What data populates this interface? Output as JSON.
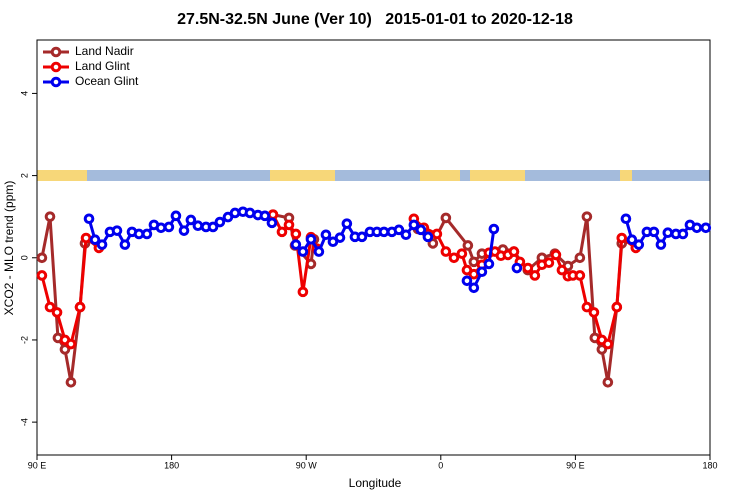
{
  "chart_data": {
    "type": "line",
    "title": "27.5N-32.5N June (Ver 10)   2015-01-01 to 2020-12-18",
    "x_label": "Longitude",
    "y_label": "XCO2 - MLO trend (ppm)",
    "xlim": [
      90,
      540
    ],
    "ylim": [
      -4.8,
      5.3
    ],
    "xticks": [
      {
        "value": 90,
        "label": "90 E"
      },
      180,
      {
        "value": 270,
        "label": "90 W"
      },
      {
        "value": 360,
        "label": "0"
      },
      {
        "value": 450,
        "label": "90 E"
      },
      {
        "value": 540,
        "label": "180"
      }
    ],
    "yticks": [
      -4,
      -2,
      0,
      2,
      4
    ],
    "legend": "top-left",
    "series": [
      {
        "name": "Land Nadir",
        "color": "#a52a2a",
        "x": [
          93.3,
          98.7,
          104,
          108.7,
          112.7,
          118.8,
          122.1,
          200,
          247.8,
          258.5,
          262.5,
          273.2,
          275.2,
          310,
          344.7,
          354.7,
          363.4,
          378.1,
          382.1,
          387.5,
          401.5,
          405.5,
          408.9,
          418.2,
          427.6,
          436.3,
          445,
          453,
          457.7,
          463,
          467.7,
          471.7,
          477.7,
          481
        ],
        "values": [
          0,
          1.0,
          -1.95,
          -2.23,
          -3.03,
          -1.2,
          0.35,
          null,
          1.05,
          0.97,
          0.3,
          -0.15,
          0.45,
          null,
          0.7,
          0.35,
          0.97,
          0.3,
          -0.1,
          0.1,
          0.2,
          0.1,
          0.15,
          -0.3,
          0,
          0.1,
          -0.2,
          0,
          1.0,
          -1.95,
          -2.23,
          -3.03,
          -1.2,
          0.35
        ]
      },
      {
        "name": "Land Glint",
        "color": "#ee0000",
        "x": [
          93.3,
          98.7,
          103.4,
          108.7,
          112.7,
          118.8,
          122.8,
          131.4,
          200,
          247.8,
          253.8,
          258.5,
          263.1,
          267.8,
          273.2,
          277.2,
          310,
          342,
          348.7,
          357.4,
          363.4,
          368.8,
          374.1,
          377.5,
          382.1,
          387.5,
          392.2,
          396.2,
          400.2,
          404.9,
          408.9,
          412.9,
          418.2,
          422.9,
          427.6,
          432.3,
          437,
          441,
          445,
          448.3,
          453,
          457.7,
          462.4,
          467.7,
          471.7,
          477.7,
          481,
          490.4
        ],
        "values": [
          -0.43,
          -1.2,
          -1.33,
          -2.0,
          -2.1,
          -1.2,
          0.48,
          0.24,
          null,
          1.05,
          0.63,
          0.8,
          0.58,
          -0.83,
          0.5,
          0.22,
          null,
          0.95,
          0.73,
          0.58,
          0.15,
          0,
          0.1,
          -0.3,
          -0.4,
          -0.17,
          0.12,
          0.15,
          0.05,
          0.07,
          0.15,
          -0.1,
          -0.25,
          -0.43,
          -0.17,
          -0.12,
          0.07,
          -0.3,
          -0.45,
          -0.43,
          -0.43,
          -1.2,
          -1.33,
          -2.0,
          -2.1,
          -1.2,
          0.48,
          0.24
        ]
      },
      {
        "name": "Ocean Glint",
        "color": "#0000ee",
        "x": [
          124.8,
          128.8,
          133.5,
          138.8,
          143.5,
          148.8,
          153.5,
          158.2,
          163.5,
          168.2,
          172.9,
          178.2,
          182.9,
          188.3,
          192.9,
          197.6,
          203,
          207.7,
          212.3,
          217.7,
          222.4,
          227.7,
          232.4,
          237.7,
          242.4,
          247.1,
          255,
          263.1,
          267.8,
          273.2,
          278.5,
          283.2,
          287.9,
          292.6,
          297.2,
          302.6,
          307.3,
          312.6,
          317.3,
          322,
          327.3,
          332,
          336.7,
          342,
          346.7,
          351.4,
          365,
          377.5,
          382.1,
          387.5,
          392.2,
          395.5,
          403,
          410.9,
          470,
          483.8,
          487.8,
          492.4,
          497.8,
          502.5,
          507.2,
          511.8,
          517.2,
          521.9,
          526.6,
          531.2,
          537.2
        ],
        "values": [
          0.95,
          0.44,
          0.32,
          0.63,
          0.66,
          0.32,
          0.63,
          0.58,
          0.58,
          0.8,
          0.73,
          0.75,
          1.02,
          0.66,
          0.92,
          0.78,
          0.75,
          0.75,
          0.87,
          0.99,
          1.09,
          1.12,
          1.09,
          1.04,
          1.02,
          0.85,
          null,
          0.32,
          0.15,
          0.45,
          0.15,
          0.56,
          0.39,
          0.49,
          0.83,
          0.51,
          0.51,
          0.63,
          0.63,
          0.63,
          0.63,
          0.68,
          0.56,
          0.8,
          0.68,
          0.51,
          null,
          -0.56,
          -0.73,
          -0.34,
          -0.15,
          0.7,
          null,
          -0.25,
          null,
          0.95,
          0.44,
          0.32,
          0.63,
          0.63,
          0.32,
          0.61,
          0.58,
          0.58,
          0.8,
          0.73,
          0.73
        ]
      }
    ]
  }
}
